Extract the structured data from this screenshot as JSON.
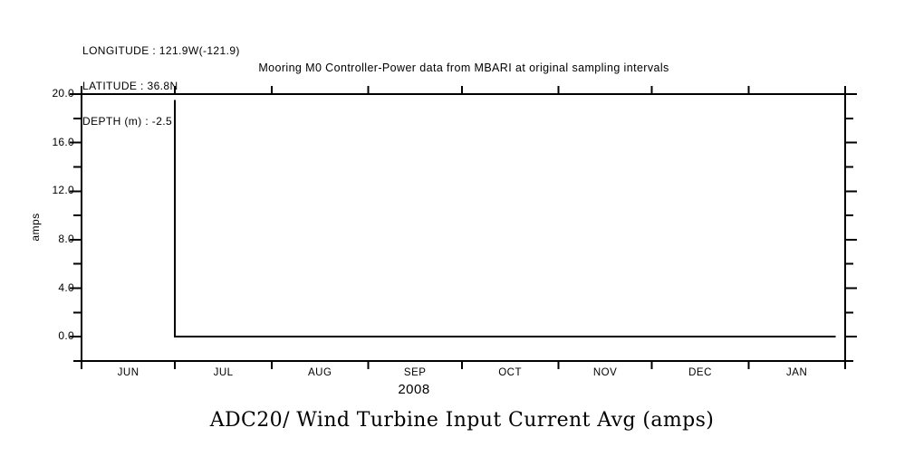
{
  "header": {
    "longitude": "LONGITUDE : 121.9W(-121.9)",
    "latitude": "LATITUDE : 36.8N",
    "depth": "DEPTH (m) : -2.5"
  },
  "colors": {
    "foreground": "#000000",
    "background": "#ffffff"
  },
  "chart_data": {
    "type": "line",
    "title": "Mooring M0 Controller-Power data from MBARI at original sampling intervals",
    "bottom_title": "ADC20/ Wind Turbine Input Current Avg (amps)",
    "ylabel": "amps",
    "year_label": "2008",
    "ylim": [
      -2,
      20
    ],
    "y_major_ticks": [
      0,
      4,
      8,
      12,
      16,
      20
    ],
    "y_major_tick_labels": [
      "0.0",
      "4.0",
      "8.0",
      "12.0",
      "16.0",
      "20.0"
    ],
    "y_minor_ticks": [
      -2,
      2,
      6,
      10,
      14,
      18
    ],
    "x_unit": "days since 2008-06-01",
    "xlim": [
      0,
      245
    ],
    "x_month_boundaries": [
      0,
      30,
      61,
      92,
      122,
      153,
      183,
      214,
      245
    ],
    "x_month_labels": [
      "JUN",
      "JUL",
      "AUG",
      "SEP",
      "OCT",
      "NOV",
      "DEC",
      "JAN"
    ],
    "grid": false,
    "legend": false,
    "line_color": "#000000",
    "series": [
      {
        "name": "ADC20 Wind Turbine Input Current Avg",
        "points": [
          [
            30,
            19.5
          ],
          [
            30,
            0.0
          ],
          [
            242,
            0.0
          ]
        ]
      }
    ]
  }
}
